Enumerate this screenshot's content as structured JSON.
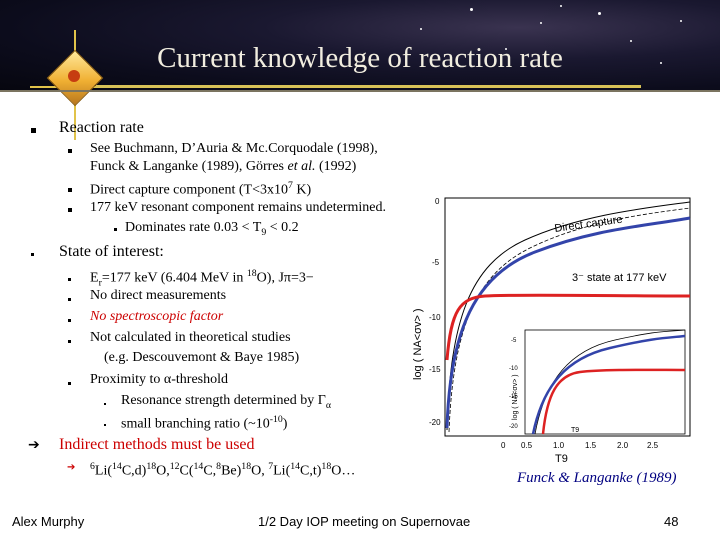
{
  "slide": {
    "title": "Current knowledge of reaction rate",
    "footer": {
      "author": "Alex Murphy",
      "meeting": "1/2 Day IOP meeting on Supernovae",
      "page": "48"
    }
  },
  "bullets": {
    "b1": {
      "label": "Reaction rate"
    },
    "b1_1": {
      "text": "See Buchmann, D’Auria & Mc.Corquodale (1998),",
      "cont": "Funck & Langanke (1989), Görres",
      "et_al": "et al.",
      "year": "(1992)"
    },
    "b1_2": {
      "pre": "Direct capture component (T<3x10",
      "exp": "7",
      "post": " K)"
    },
    "b1_3": {
      "text": "177 keV resonant component remains undetermined."
    },
    "b1_3_1": {
      "pre": "Dominates rate 0.03 < T",
      "sub": "9",
      "post": " < 0.2"
    },
    "b2": {
      "label": "State of interest:"
    },
    "b2_1": {
      "pre": "E",
      "sub": "r",
      "mid": "=177 keV (6.404 MeV in ",
      "sup": "18",
      "post": "O), Jπ=3−"
    },
    "b2_2": {
      "text": "No direct measurements"
    },
    "b2_3": {
      "text": "No spectroscopic factor"
    },
    "b2_4": {
      "text": "Not calculated in theoretical studies",
      "cont": "(e.g. Descouvemont & Baye 1985)"
    },
    "b2_5": {
      "text": "Proximity to α-threshold"
    },
    "b2_5_1": {
      "pre": "Resonance strength determined by Γ",
      "sub": "α"
    },
    "b2_5_2": {
      "pre": "small branching ratio (~10",
      "sup": "-10",
      "post": ")"
    },
    "b3": {
      "label": "Indirect methods must be used"
    },
    "b3_1": {
      "p1": "6",
      "t1": "Li(",
      "p2": "14",
      "t2": "C,d)",
      "p3": "18",
      "t3": "O,",
      "p4": "12",
      "t4": "C(",
      "p5": "14",
      "t5": "C,",
      "p6": "8",
      "t6": "Be)",
      "p7": "18",
      "t7": "O, ",
      "p8": "7",
      "t8": "Li(",
      "p9": "14",
      "t9": "C,t)",
      "p10": "18",
      "t10": "O…"
    }
  },
  "figure": {
    "citation": "Funck & Langanke (1989)",
    "labels": {
      "direct_capture": "Direct capture",
      "state": "3⁻ state at 177 keV",
      "ylabel_main": "log ( NA<σv> )",
      "ylabel_inset": "log ( NA<σv> )",
      "xlabel_main": "T9",
      "xlabel_inset": "T9"
    },
    "y_ticks": [
      "0",
      "-5",
      "-10",
      "-15",
      "-20"
    ],
    "x_ticks": [
      "0",
      "0.5",
      "1.0",
      "1.5",
      "2.0",
      "2.5"
    ],
    "inset_y_ticks": [
      "-5",
      "-10",
      "-15",
      "-20"
    ],
    "colors": {
      "direct": "#3344aa",
      "resonant": "#dd2222"
    }
  }
}
